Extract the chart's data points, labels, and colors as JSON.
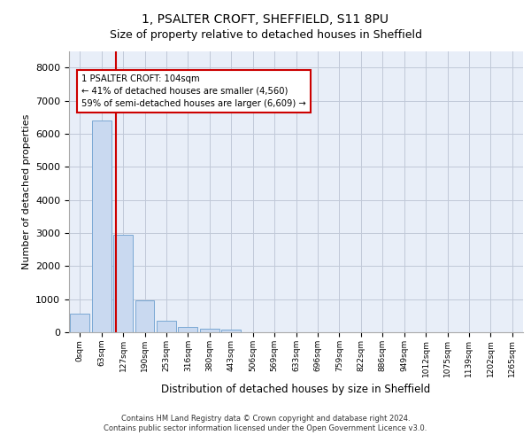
{
  "title_line1": "1, PSALTER CROFT, SHEFFIELD, S11 8PU",
  "title_line2": "Size of property relative to detached houses in Sheffield",
  "xlabel": "Distribution of detached houses by size in Sheffield",
  "ylabel": "Number of detached properties",
  "bar_categories": [
    "0sqm",
    "63sqm",
    "127sqm",
    "190sqm",
    "253sqm",
    "316sqm",
    "380sqm",
    "443sqm",
    "506sqm",
    "569sqm",
    "633sqm",
    "696sqm",
    "759sqm",
    "822sqm",
    "886sqm",
    "949sqm",
    "1012sqm",
    "1075sqm",
    "1139sqm",
    "1202sqm",
    "1265sqm"
  ],
  "bar_heights": [
    550,
    6400,
    2950,
    970,
    340,
    165,
    100,
    70,
    0,
    0,
    0,
    0,
    0,
    0,
    0,
    0,
    0,
    0,
    0,
    0,
    0
  ],
  "bar_color": "#c9d9f0",
  "bar_edge_color": "#7aa8d4",
  "property_line_x": 1.65,
  "annotation_text": "1 PSALTER CROFT: 104sqm\n← 41% of detached houses are smaller (4,560)\n59% of semi-detached houses are larger (6,609) →",
  "annotation_box_color": "#ffffff",
  "annotation_box_edge_color": "#cc0000",
  "vline_color": "#cc0000",
  "ylim": [
    0,
    8500
  ],
  "yticks": [
    0,
    1000,
    2000,
    3000,
    4000,
    5000,
    6000,
    7000,
    8000
  ],
  "grid_color": "#c0c8d8",
  "bg_color": "#e8eef8",
  "footer_line1": "Contains HM Land Registry data © Crown copyright and database right 2024.",
  "footer_line2": "Contains public sector information licensed under the Open Government Licence v3.0.",
  "title_fontsize": 10,
  "subtitle_fontsize": 9
}
